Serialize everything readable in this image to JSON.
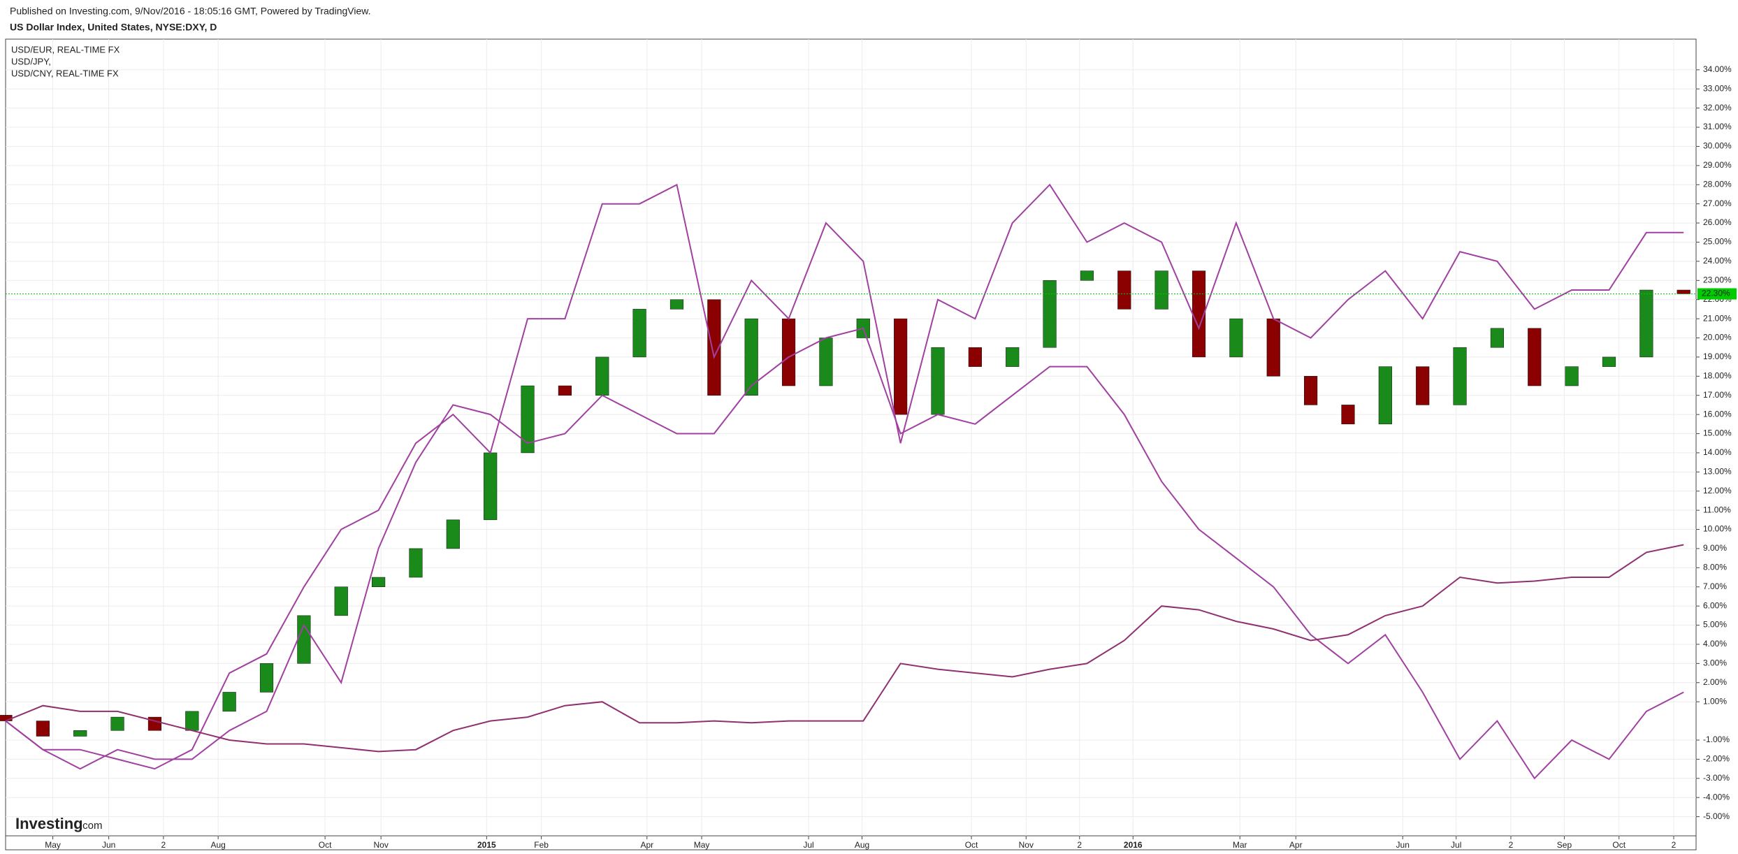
{
  "header": {
    "published": "Published on Investing.com, 9/Nov/2016 - 18:05:16 GMT, Powered by TradingView.",
    "title": "US Dollar Index, United States, NYSE:DXY, D",
    "logo": "Investing",
    "logo_suffix": ".com"
  },
  "chart_data": {
    "type": "line",
    "x": [
      0,
      3,
      6,
      9,
      12,
      15,
      18,
      21,
      24,
      27,
      30,
      33,
      36,
      39,
      42,
      45,
      48,
      51,
      54,
      57,
      60,
      63,
      66,
      69,
      72,
      75,
      78,
      81,
      84,
      87,
      90,
      93,
      96,
      99,
      102,
      105,
      108,
      111,
      114,
      117,
      120,
      123,
      126,
      129,
      132,
      135
    ],
    "xlim": [
      0,
      136
    ],
    "xticks": [
      {
        "value": 3.8,
        "label": "May"
      },
      {
        "value": 8.3,
        "label": "Jun"
      },
      {
        "value": 12.7,
        "label": "2"
      },
      {
        "value": 17.1,
        "label": "Aug"
      },
      {
        "value": 25.7,
        "label": "Oct"
      },
      {
        "value": 30.2,
        "label": "Nov"
      },
      {
        "value": 38.7,
        "label": "2015"
      },
      {
        "value": 43.1,
        "label": "Feb"
      },
      {
        "value": 51.6,
        "label": "Apr"
      },
      {
        "value": 56.0,
        "label": "May"
      },
      {
        "value": 64.6,
        "label": "Jul"
      },
      {
        "value": 68.9,
        "label": "Aug"
      },
      {
        "value": 77.7,
        "label": "Oct"
      },
      {
        "value": 82.1,
        "label": "Nov"
      },
      {
        "value": 86.4,
        "label": "2"
      },
      {
        "value": 90.7,
        "label": "2016"
      },
      {
        "value": 99.3,
        "label": "Mar"
      },
      {
        "value": 103.8,
        "label": "Apr"
      },
      {
        "value": 112.4,
        "label": "Jun"
      },
      {
        "value": 116.7,
        "label": "Jul"
      },
      {
        "value": 121.1,
        "label": "2"
      },
      {
        "value": 125.4,
        "label": "Sep"
      },
      {
        "value": 129.8,
        "label": "Oct"
      },
      {
        "value": 134.2,
        "label": "2"
      }
    ],
    "ylim": [
      -6,
      35.6
    ],
    "yticks": [
      {
        "value": 34,
        "label": "34.00%"
      },
      {
        "value": 33,
        "label": "33.00%"
      },
      {
        "value": 32,
        "label": "32.00%"
      },
      {
        "value": 31,
        "label": "31.00%"
      },
      {
        "value": 30,
        "label": "30.00%"
      },
      {
        "value": 29,
        "label": "29.00%"
      },
      {
        "value": 28,
        "label": "28.00%"
      },
      {
        "value": 27,
        "label": "27.00%"
      },
      {
        "value": 26,
        "label": "26.00%"
      },
      {
        "value": 25,
        "label": "25.00%"
      },
      {
        "value": 24,
        "label": "24.00%"
      },
      {
        "value": 23,
        "label": "23.00%"
      },
      {
        "value": 22,
        "label": "22.00%"
      },
      {
        "value": 21,
        "label": "21.00%"
      },
      {
        "value": 20,
        "label": "20.00%"
      },
      {
        "value": 19,
        "label": "19.00%"
      },
      {
        "value": 18,
        "label": "18.00%"
      },
      {
        "value": 17,
        "label": "17.00%"
      },
      {
        "value": 16,
        "label": "16.00%"
      },
      {
        "value": 15,
        "label": "15.00%"
      },
      {
        "value": 14,
        "label": "14.00%"
      },
      {
        "value": 13,
        "label": "13.00%"
      },
      {
        "value": 12,
        "label": "12.00%"
      },
      {
        "value": 11,
        "label": "11.00%"
      },
      {
        "value": 10,
        "label": "10.00%"
      },
      {
        "value": 9,
        "label": "9.00%"
      },
      {
        "value": 8,
        "label": "8.00%"
      },
      {
        "value": 7,
        "label": "7.00%"
      },
      {
        "value": 6,
        "label": "6.00%"
      },
      {
        "value": 5,
        "label": "5.00%"
      },
      {
        "value": 4,
        "label": "4.00%"
      },
      {
        "value": 3,
        "label": "3.00%"
      },
      {
        "value": 2,
        "label": "2.00%"
      },
      {
        "value": 1,
        "label": "1.00%"
      },
      {
        "value": -1,
        "label": "-1.00%"
      },
      {
        "value": -2,
        "label": "-2.00%"
      },
      {
        "value": -3,
        "label": "-3.00%"
      },
      {
        "value": -4,
        "label": "-4.00%"
      },
      {
        "value": -5,
        "label": "-5.00%"
      }
    ],
    "grid": true,
    "legend": "top-left",
    "last_value": {
      "value": 22.3,
      "label": "22.30%",
      "color": "#00cc00"
    },
    "series": [
      {
        "type": "candlestick",
        "up_color": "#1a8a1a",
        "down_color": "#8b0000",
        "open": [
          0.3,
          0,
          -0.8,
          -0.5,
          0.2,
          -0.5,
          0.5,
          1.5,
          3,
          5.5,
          7,
          7.5,
          9,
          10.5,
          14,
          17.5,
          17,
          19,
          21.5,
          22,
          17,
          21,
          17.5,
          20,
          21,
          16,
          19.5,
          18.5,
          19.5,
          23,
          23.5,
          21.5,
          23.5,
          19,
          21,
          18,
          16.5,
          15.5,
          18.5,
          16.5,
          19.5,
          20.5,
          17.5,
          18.5,
          19,
          22.5
        ],
        "close": [
          0,
          -0.8,
          -0.5,
          0.2,
          -0.5,
          0.5,
          1.5,
          3,
          5.5,
          7,
          7.5,
          9,
          10.5,
          14,
          17.5,
          17,
          19,
          21.5,
          22,
          17,
          21,
          17.5,
          20,
          21,
          16,
          19.5,
          18.5,
          19.5,
          23,
          23.5,
          21.5,
          23.5,
          19,
          21,
          18,
          16.5,
          15.5,
          18.5,
          16.5,
          19.5,
          20.5,
          17.5,
          18.5,
          19,
          22.5,
          22.3
        ]
      },
      {
        "type": "line",
        "name": "USD/EUR, REAL-TIME FX",
        "color": "#a040a0",
        "values": [
          0,
          -1.5,
          -1.5,
          -2,
          -2.5,
          -1.5,
          2.5,
          3.5,
          7,
          10,
          11,
          14.5,
          16,
          14,
          21,
          21,
          27,
          27,
          28,
          19,
          23,
          21,
          26,
          24,
          14.5,
          22,
          21,
          26,
          28,
          25,
          26,
          25,
          20.5,
          26,
          21,
          20,
          22,
          23.5,
          21,
          24.5,
          24,
          21.5,
          22.5,
          22.5,
          25.5,
          25.5
        ]
      },
      {
        "type": "line",
        "name": "USD/JPY,",
        "color": "#a040a0",
        "values": [
          0,
          -1.5,
          -2.5,
          -1.5,
          -2,
          -2,
          -0.5,
          0.5,
          5,
          2,
          9,
          13.5,
          16.5,
          16,
          14.5,
          15,
          17,
          16,
          15,
          15,
          17.5,
          19,
          20,
          20.5,
          15,
          16,
          15.5,
          17,
          18.5,
          18.5,
          16,
          12.5,
          10,
          8.5,
          7,
          4.5,
          3,
          4.5,
          1.5,
          -2,
          0,
          -3,
          -1,
          -2,
          0.5,
          1.5
        ]
      },
      {
        "type": "line",
        "name": "USD/CNY, REAL-TIME FX",
        "color": "#903070",
        "values": [
          0,
          0.8,
          0.5,
          0.5,
          0,
          -0.5,
          -1,
          -1.2,
          -1.2,
          -1.4,
          -1.6,
          -1.5,
          -0.5,
          0,
          0.2,
          0.8,
          1,
          -0.1,
          -0.1,
          0,
          -0.1,
          0,
          0,
          0,
          3,
          2.7,
          2.5,
          2.3,
          2.7,
          3,
          4.2,
          6,
          5.8,
          5.2,
          4.8,
          4.2,
          4.5,
          5.5,
          6,
          7.5,
          7.2,
          7.3,
          7.5,
          7.5,
          8.8,
          9.2
        ]
      }
    ]
  }
}
